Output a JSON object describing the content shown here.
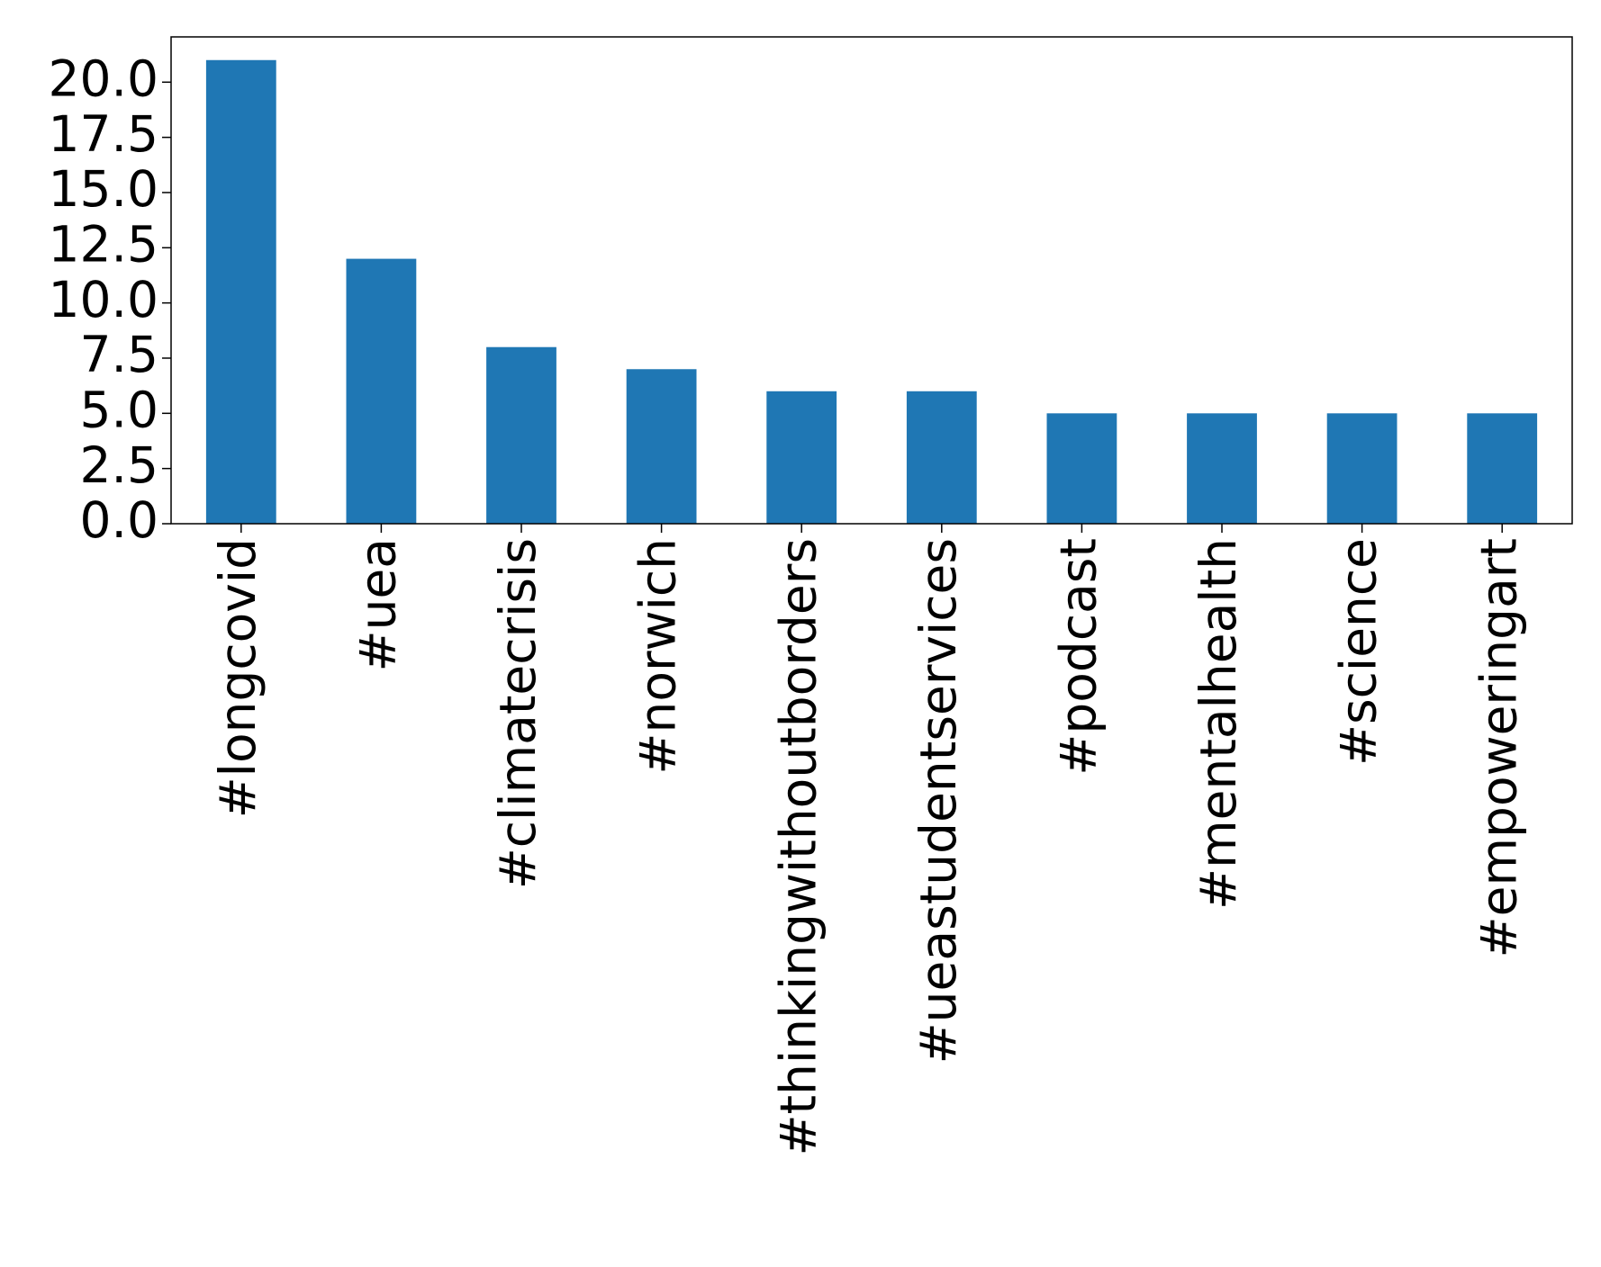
{
  "chart_data": {
    "type": "bar",
    "categories": [
      "#longcovid",
      "#uea",
      "#climatecrisis",
      "#norwich",
      "#thinkingwithoutborders",
      "#ueastudentservices",
      "#podcast",
      "#mentalhealth",
      "#science",
      "#empoweringart"
    ],
    "values": [
      21,
      12,
      8,
      7,
      6,
      6,
      5,
      5,
      5,
      5
    ],
    "color": "#1f77b4",
    "ylim": [
      0,
      22.05
    ],
    "yticks": [
      {
        "value": 0,
        "label": "0.0"
      },
      2.5,
      {
        "value": 5,
        "label": "5.0"
      },
      7.5,
      {
        "value": 10,
        "label": "10.0"
      },
      12.5,
      {
        "value": 15,
        "label": "15.0"
      },
      17.5,
      {
        "value": 20,
        "label": "20.0"
      }
    ],
    "grid": false
  }
}
